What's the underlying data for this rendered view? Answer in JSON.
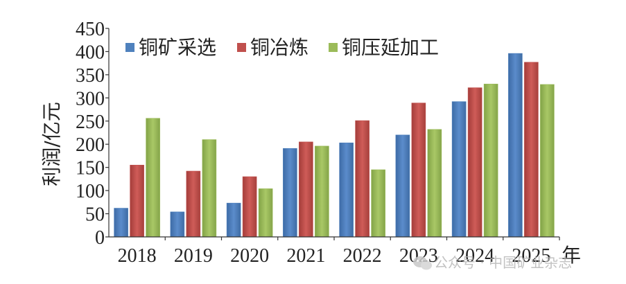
{
  "chart_data": {
    "type": "bar",
    "categories": [
      "2018",
      "2019",
      "2020",
      "2021",
      "2022",
      "2023",
      "2024",
      "2025"
    ],
    "series": [
      {
        "name": "铜矿采选",
        "color": "#4f81bd",
        "values": [
          62,
          54,
          73,
          191,
          203,
          220,
          292,
          396
        ]
      },
      {
        "name": "铜冶炼",
        "color": "#c0504d",
        "values": [
          155,
          142,
          130,
          205,
          251,
          289,
          322,
          377
        ]
      },
      {
        "name": "铜压延加工",
        "color": "#9bbb59",
        "values": [
          256,
          210,
          104,
          196,
          145,
          232,
          330,
          329
        ]
      }
    ],
    "ylabel": "利润/亿元",
    "xlabel": "年",
    "ylim": [
      0,
      450
    ],
    "yticks": [
      0,
      50,
      100,
      150,
      200,
      250,
      300,
      350,
      400,
      450
    ],
    "grid": false,
    "legend_position": "top-left"
  },
  "watermark": {
    "icon": "wechat-icon",
    "text": "公众号 · 中国矿业杂志"
  }
}
